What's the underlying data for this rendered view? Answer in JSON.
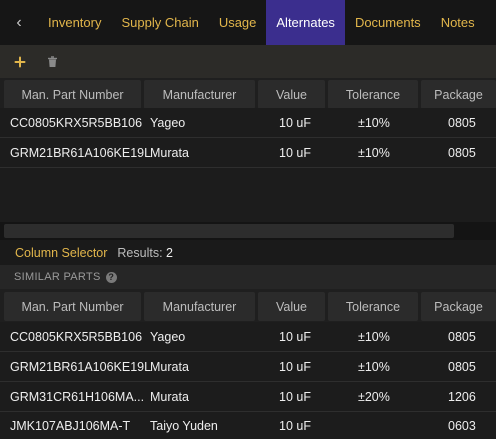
{
  "tabs": {
    "back_glyph": "‹",
    "items": [
      {
        "label": "Inventory"
      },
      {
        "label": "Supply Chain"
      },
      {
        "label": "Usage"
      },
      {
        "label": "Alternates"
      },
      {
        "label": "Documents"
      },
      {
        "label": "Notes"
      }
    ],
    "active": "Alternates"
  },
  "toolbar": {
    "add_icon": "plus-icon",
    "delete_icon": "trash-icon",
    "add_color": "#e2b64b"
  },
  "columns": [
    "Man. Part Number",
    "Manufacturer",
    "Value",
    "Tolerance",
    "Package"
  ],
  "alternates": {
    "rows": [
      {
        "mpn": "CC0805KRX5R5BB106",
        "manufacturer": "Yageo",
        "value": "10 uF",
        "tolerance": "±10%",
        "package": "0805"
      },
      {
        "mpn": "GRM21BR61A106KE19L",
        "manufacturer": "Murata",
        "value": "10 uF",
        "tolerance": "±10%",
        "package": "0805"
      }
    ]
  },
  "column_selector": {
    "label": "Column Selector",
    "results_label": "Results:",
    "results_count": "2"
  },
  "similar": {
    "title": "SIMILAR PARTS",
    "rows": [
      {
        "mpn": "CC0805KRX5R5BB106",
        "manufacturer": "Yageo",
        "value": "10 uF",
        "tolerance": "±10%",
        "package": "0805"
      },
      {
        "mpn": "GRM21BR61A106KE19L",
        "manufacturer": "Murata",
        "value": "10 uF",
        "tolerance": "±10%",
        "package": "0805"
      },
      {
        "mpn": "GRM31CR61H106MA...",
        "manufacturer": "Murata",
        "value": "10 uF",
        "tolerance": "±20%",
        "package": "1206"
      },
      {
        "mpn": "JMK107ABJ106MA-T",
        "manufacturer": "Taiyo Yuden",
        "value": "10 uF",
        "tolerance": "",
        "package": "0603"
      }
    ]
  },
  "colors": {
    "accent": "#e2b64b",
    "active_tab": "#3b2e8e"
  }
}
